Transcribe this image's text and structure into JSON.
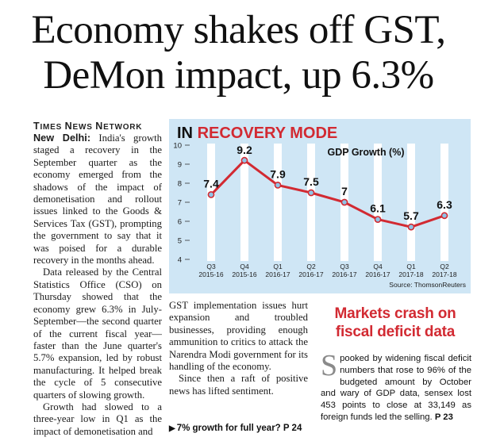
{
  "headline": {
    "line1": "Economy shakes off GST,",
    "line2": "DeMon impact, up 6.3%"
  },
  "byline": {
    "t1": "T",
    "w1": "IMES ",
    "t2": "N",
    "w2": "EWS ",
    "t3": "N",
    "w3": "ETWORK"
  },
  "article": {
    "dateline": "New Delhi:",
    "p1": " India's growth staged a recovery in the September quarter as the economy emerged from the shadows of the impact of demonetisation and rollout issues linked to the Goods & Services Tax (GST), prompting the government to say that it was poised for a durable recovery in the months ahead.",
    "p2": "Data released by the Central Statistics Office (CSO) on Thursday showed that the economy grew 6.3% in July-September—the second quarter of the current fiscal year—faster than the June quarter's 5.7% expansion, led by robust manufacturing. It helped break the cycle of 5 consecutive quarters of slowing growth.",
    "p3": "Growth had slowed to a three-year low in Q1 as the impact of demonetisation and",
    "p4": "GST implementation issues hurt expansion and troubled businesses, providing enough ammunition to critics to attack the Narendra Modi government for its handling of the economy.",
    "p5": "Since then a raft of positive news has lifted sentiment.",
    "see_also": "7% growth for full year? P 24"
  },
  "sidebar": {
    "headline": "Markets crash on fiscal deficit data",
    "dropcap": "S",
    "body": "pooked by widening fiscal deficit numbers that rose to 96% of the budgeted amount by October and wary of GDP data, sensex lost 453 points to close at 33,149 as foreign funds led the selling.",
    "ref": " P 23"
  },
  "chart_data": {
    "type": "line",
    "title_prefix": "IN ",
    "title_highlight": "RECOVERY MODE",
    "series_label": "GDP Growth (%)",
    "source": "Source: ThomsonReuters",
    "categories": [
      [
        "Q3",
        "2015-16"
      ],
      [
        "Q4",
        "2015-16"
      ],
      [
        "Q1",
        "2016-17"
      ],
      [
        "Q2",
        "2016-17"
      ],
      [
        "Q3",
        "2016-17"
      ],
      [
        "Q4",
        "2016-17"
      ],
      [
        "Q1",
        "2017-18"
      ],
      [
        "Q2",
        "2017-18"
      ]
    ],
    "values": [
      7.4,
      9.2,
      7.9,
      7.5,
      7,
      6.1,
      5.7,
      6.3
    ],
    "value_labels": [
      "7.4",
      "9.2",
      "7.9",
      "7.5",
      "7",
      "6.1",
      "5.7",
      "6.3"
    ],
    "yticks": [
      4,
      5,
      6,
      7,
      8,
      9,
      10
    ],
    "ylim": [
      4,
      10
    ],
    "colors": {
      "panel": "#cfe6f5",
      "band": "#ffffff",
      "line": "#d22a32",
      "marker_fill": "#8fc3e6",
      "title_red": "#d22a32",
      "title_dark": "#111111"
    }
  }
}
